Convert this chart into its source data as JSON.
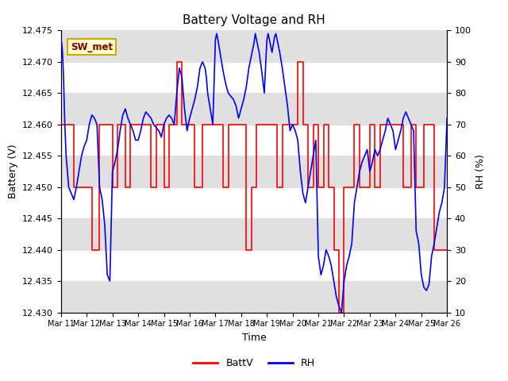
{
  "title": "Battery Voltage and RH",
  "xlabel": "Time",
  "ylabel_left": "Battery (V)",
  "ylabel_right": "RH (%)",
  "ylim_left": [
    12.43,
    12.475
  ],
  "ylim_right": [
    10,
    100
  ],
  "yticks_left": [
    12.43,
    12.435,
    12.44,
    12.445,
    12.45,
    12.455,
    12.46,
    12.465,
    12.47,
    12.475
  ],
  "yticks_right": [
    10,
    20,
    30,
    40,
    50,
    60,
    70,
    80,
    90,
    100
  ],
  "xtick_labels": [
    "Mar 11",
    "Mar 12",
    "Mar 13",
    "Mar 14",
    "Mar 15",
    "Mar 16",
    "Mar 17",
    "Mar 18",
    "Mar 19",
    "Mar 20",
    "Mar 21",
    "Mar 22",
    "Mar 23",
    "Mar 24",
    "Mar 25",
    "Mar 26"
  ],
  "station_label": "SW_met",
  "station_label_bg": "#ffffcc",
  "station_label_border": "#ccaa00",
  "station_label_text_color": "#800000",
  "batt_color": "#ff0000",
  "rh_color": "#0000ff",
  "bg_band_color": "#e0e0e0",
  "legend_batt": "BattV",
  "legend_rh": "RH",
  "batt_x": [
    11.0,
    11.1,
    11.2,
    11.3,
    11.4,
    11.5,
    11.6,
    11.7,
    11.8,
    11.9,
    12.0,
    12.1,
    12.2,
    12.3,
    12.4,
    12.5,
    12.6,
    12.7,
    12.8,
    12.9,
    13.0,
    13.1,
    13.2,
    13.3,
    13.4,
    13.5,
    13.6,
    13.7,
    13.8,
    13.9,
    14.0,
    14.1,
    14.2,
    14.3,
    14.4,
    14.5,
    14.6,
    14.7,
    14.8,
    14.9,
    15.0,
    15.1,
    15.2,
    15.3,
    15.4,
    15.5,
    15.6,
    15.7,
    15.8,
    15.9,
    16.0,
    16.1,
    16.2,
    16.3,
    16.4,
    16.5,
    16.6,
    16.7,
    16.8,
    16.9,
    17.0,
    17.1,
    17.2,
    17.3,
    17.4,
    17.5,
    17.6,
    17.7,
    17.8,
    17.9,
    18.0,
    18.1,
    18.2,
    18.3,
    18.4,
    18.5,
    18.6,
    18.7,
    18.8,
    18.9,
    19.0,
    19.1,
    19.2,
    19.3,
    19.4,
    19.5,
    19.6,
    19.7,
    19.8,
    19.9,
    20.0,
    20.1,
    20.2,
    20.3,
    20.4,
    20.5,
    20.6,
    20.7,
    20.8,
    20.9,
    21.0,
    21.1,
    21.2,
    21.3,
    21.4,
    21.5,
    21.6,
    21.7,
    21.8,
    21.9,
    22.0,
    22.1,
    22.2,
    22.3,
    22.4,
    22.5,
    22.6,
    22.7,
    22.8,
    22.9,
    23.0,
    23.1,
    23.2,
    23.3,
    23.4,
    23.5,
    23.6,
    23.7,
    23.8,
    23.9,
    24.0,
    24.1,
    24.2,
    24.3,
    24.4,
    24.5,
    24.6,
    24.7,
    24.8,
    24.9,
    25.0,
    25.1,
    25.2,
    25.3,
    25.4,
    25.5,
    25.6,
    25.7,
    25.8,
    25.9,
    26.0
  ],
  "batt_y": [
    12.46,
    12.46,
    12.46,
    12.46,
    12.46,
    12.45,
    12.45,
    12.45,
    12.45,
    12.45,
    12.45,
    12.45,
    12.44,
    12.44,
    12.44,
    12.46,
    12.46,
    12.46,
    12.46,
    12.46,
    12.45,
    12.45,
    12.46,
    12.46,
    12.46,
    12.45,
    12.45,
    12.46,
    12.46,
    12.46,
    12.46,
    12.46,
    12.46,
    12.46,
    12.46,
    12.45,
    12.45,
    12.46,
    12.46,
    12.46,
    12.45,
    12.45,
    12.46,
    12.46,
    12.46,
    12.47,
    12.47,
    12.46,
    12.46,
    12.46,
    12.46,
    12.46,
    12.45,
    12.45,
    12.45,
    12.46,
    12.46,
    12.46,
    12.46,
    12.46,
    12.46,
    12.46,
    12.46,
    12.45,
    12.45,
    12.46,
    12.46,
    12.46,
    12.46,
    12.46,
    12.46,
    12.46,
    12.44,
    12.44,
    12.45,
    12.45,
    12.46,
    12.46,
    12.46,
    12.46,
    12.46,
    12.46,
    12.46,
    12.46,
    12.45,
    12.45,
    12.46,
    12.46,
    12.46,
    12.46,
    12.46,
    12.46,
    12.47,
    12.47,
    12.46,
    12.46,
    12.45,
    12.45,
    12.46,
    12.46,
    12.45,
    12.45,
    12.46,
    12.46,
    12.45,
    12.45,
    12.44,
    12.44,
    12.43,
    12.43,
    12.45,
    12.45,
    12.45,
    12.45,
    12.46,
    12.46,
    12.45,
    12.45,
    12.45,
    12.45,
    12.46,
    12.46,
    12.45,
    12.45,
    12.46,
    12.46,
    12.46,
    12.46,
    12.46,
    12.46,
    12.46,
    12.46,
    12.46,
    12.45,
    12.45,
    12.45,
    12.46,
    12.46,
    12.45,
    12.45,
    12.45,
    12.46,
    12.46,
    12.46,
    12.46,
    12.44,
    12.44,
    12.44,
    12.44,
    12.44,
    12.44
  ],
  "rh_x": [
    11.0,
    11.03,
    11.06,
    11.1,
    11.15,
    11.2,
    11.3,
    11.4,
    11.5,
    11.6,
    11.7,
    11.8,
    11.9,
    12.0,
    12.1,
    12.2,
    12.3,
    12.4,
    12.5,
    12.55,
    12.6,
    12.7,
    12.8,
    12.9,
    13.0,
    13.1,
    13.2,
    13.3,
    13.4,
    13.5,
    13.6,
    13.7,
    13.8,
    13.9,
    14.0,
    14.1,
    14.2,
    14.3,
    14.4,
    14.5,
    14.6,
    14.7,
    14.8,
    14.9,
    15.0,
    15.1,
    15.2,
    15.3,
    15.4,
    15.5,
    15.6,
    15.7,
    15.8,
    15.9,
    16.0,
    16.1,
    16.2,
    16.3,
    16.4,
    16.5,
    16.6,
    16.65,
    16.7,
    16.8,
    16.9,
    17.0,
    17.05,
    17.1,
    17.2,
    17.3,
    17.4,
    17.5,
    17.6,
    17.7,
    17.8,
    17.9,
    18.0,
    18.1,
    18.2,
    18.3,
    18.4,
    18.5,
    18.55,
    18.6,
    18.7,
    18.8,
    18.9,
    19.0,
    19.05,
    19.1,
    19.2,
    19.3,
    19.35,
    19.4,
    19.5,
    19.6,
    19.7,
    19.8,
    19.9,
    20.0,
    20.1,
    20.2,
    20.3,
    20.4,
    20.5,
    20.6,
    20.7,
    20.8,
    20.9,
    21.0,
    21.05,
    21.1,
    21.2,
    21.3,
    21.4,
    21.5,
    21.6,
    21.7,
    21.8,
    21.9,
    22.0,
    22.1,
    22.2,
    22.3,
    22.4,
    22.5,
    22.6,
    22.7,
    22.8,
    22.9,
    23.0,
    23.1,
    23.2,
    23.3,
    23.4,
    23.5,
    23.6,
    23.7,
    23.8,
    23.9,
    24.0,
    24.1,
    24.2,
    24.3,
    24.4,
    24.5,
    24.6,
    24.7,
    24.8,
    24.9,
    25.0,
    25.1,
    25.2,
    25.3,
    25.4,
    25.5,
    25.6,
    25.7,
    25.8,
    25.9,
    26.0
  ],
  "rh_y": [
    97,
    96,
    93,
    85,
    70,
    60,
    50,
    48,
    46,
    50,
    55,
    60,
    63,
    65,
    70,
    73,
    72,
    70,
    50,
    48,
    46,
    38,
    22,
    20,
    55,
    58,
    62,
    68,
    73,
    75,
    72,
    70,
    68,
    65,
    65,
    68,
    72,
    74,
    73,
    72,
    70,
    69,
    68,
    66,
    70,
    72,
    73,
    72,
    70,
    80,
    88,
    85,
    75,
    68,
    72,
    75,
    78,
    82,
    88,
    90,
    88,
    85,
    80,
    75,
    70,
    97,
    99,
    97,
    92,
    87,
    83,
    80,
    79,
    78,
    76,
    72,
    75,
    78,
    82,
    88,
    92,
    96,
    99,
    97,
    93,
    87,
    80,
    97,
    99,
    97,
    93,
    98,
    99,
    97,
    93,
    88,
    82,
    76,
    68,
    70,
    68,
    65,
    55,
    48,
    45,
    50,
    55,
    60,
    65,
    28,
    25,
    22,
    25,
    30,
    28,
    25,
    20,
    15,
    12,
    10,
    20,
    25,
    28,
    32,
    45,
    50,
    55,
    58,
    60,
    62,
    55,
    58,
    62,
    60,
    62,
    65,
    68,
    72,
    70,
    68,
    62,
    65,
    68,
    72,
    74,
    72,
    70,
    68,
    36,
    32,
    22,
    18,
    17,
    19,
    28,
    32,
    37,
    42,
    45,
    50,
    72
  ]
}
